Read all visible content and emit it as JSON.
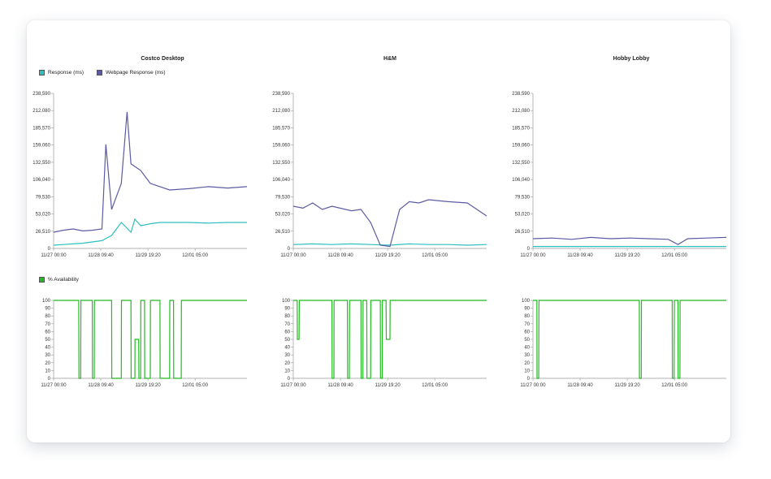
{
  "legend": {
    "response": "Response (ms)",
    "webpage_response": "Webpage Response (ms)",
    "availability": "% Availability"
  },
  "colors": {
    "response": "#2ebfbf",
    "webpage_response": "#5b5ba3",
    "availability": "#22bb22"
  },
  "chart_data": [
    {
      "type": "line",
      "title": "Costco Desktop",
      "x_ticks": [
        "11/27 00:00",
        "11/28 09:40",
        "11/29 19:20",
        "12/01 05:00"
      ],
      "y_ticks": [
        "238,590",
        "212,080",
        "185,570",
        "159,060",
        "132,550",
        "106,040",
        "79,530",
        "53,020",
        "26,510",
        "0"
      ],
      "ylim": [
        0,
        238590
      ],
      "series": [
        {
          "name": "Response (ms)",
          "x": [
            0,
            0.05,
            0.1,
            0.15,
            0.2,
            0.25,
            0.3,
            0.35,
            0.4,
            0.42,
            0.45,
            0.5,
            0.55,
            0.6,
            0.7,
            0.8,
            0.9,
            1.0
          ],
          "y": [
            5000,
            6000,
            7000,
            8000,
            10000,
            12000,
            20000,
            40000,
            25000,
            45000,
            35000,
            38000,
            40000,
            40000,
            40000,
            39000,
            40000,
            40000
          ]
        },
        {
          "name": "Webpage Response (ms)",
          "x": [
            0,
            0.05,
            0.1,
            0.15,
            0.2,
            0.25,
            0.27,
            0.3,
            0.35,
            0.38,
            0.4,
            0.45,
            0.5,
            0.55,
            0.6,
            0.7,
            0.8,
            0.9,
            1.0
          ],
          "y": [
            25000,
            28000,
            30000,
            27000,
            28000,
            30000,
            160000,
            60000,
            100000,
            210000,
            130000,
            120000,
            100000,
            95000,
            90000,
            92000,
            95000,
            93000,
            95000
          ]
        }
      ]
    },
    {
      "type": "line",
      "title": "H&M",
      "x_ticks": [
        "11/27 00:00",
        "11/28 09:40",
        "11/29 19:20",
        "12/01 05:00"
      ],
      "y_ticks": [
        "238,590",
        "212,080",
        "185,570",
        "159,060",
        "132,550",
        "106,040",
        "79,530",
        "53,020",
        "26,510",
        "0"
      ],
      "ylim": [
        0,
        238590
      ],
      "series": [
        {
          "name": "Response (ms)",
          "x": [
            0,
            0.1,
            0.2,
            0.3,
            0.4,
            0.5,
            0.6,
            0.7,
            0.8,
            0.9,
            1.0
          ],
          "y": [
            6000,
            7000,
            6000,
            7000,
            6000,
            5000,
            7000,
            6000,
            6000,
            5000,
            6000
          ]
        },
        {
          "name": "Webpage Response (ms)",
          "x": [
            0,
            0.05,
            0.1,
            0.15,
            0.2,
            0.3,
            0.35,
            0.4,
            0.45,
            0.5,
            0.55,
            0.6,
            0.65,
            0.7,
            0.8,
            0.9,
            1.0
          ],
          "y": [
            65000,
            62000,
            70000,
            60000,
            65000,
            58000,
            60000,
            40000,
            5000,
            3000,
            60000,
            72000,
            70000,
            75000,
            72000,
            70000,
            50000
          ]
        }
      ]
    },
    {
      "type": "line",
      "title": "Hobby Lobby",
      "x_ticks": [
        "11/27 00:00",
        "11/28 09:40",
        "11/29 19:20",
        "12/01 05:00"
      ],
      "y_ticks": [
        "238,590",
        "212,080",
        "185,570",
        "159,060",
        "132,550",
        "106,040",
        "79,530",
        "53,020",
        "26,510",
        "0"
      ],
      "ylim": [
        0,
        238590
      ],
      "series": [
        {
          "name": "Response (ms)",
          "x": [
            0,
            0.1,
            0.2,
            0.3,
            0.4,
            0.5,
            0.6,
            0.7,
            0.8,
            0.9,
            1.0
          ],
          "y": [
            3000,
            3000,
            3000,
            3000,
            3000,
            3000,
            3000,
            3000,
            3000,
            3000,
            3000
          ]
        },
        {
          "name": "Webpage Response (ms)",
          "x": [
            0,
            0.1,
            0.2,
            0.3,
            0.4,
            0.5,
            0.6,
            0.7,
            0.75,
            0.8,
            0.9,
            1.0
          ],
          "y": [
            15000,
            16000,
            14000,
            17000,
            15000,
            16000,
            15000,
            14000,
            6000,
            15000,
            16000,
            17000
          ]
        }
      ]
    },
    {
      "type": "line",
      "title": "",
      "x_ticks": [
        "11/27 00:00",
        "11/28 09:40",
        "11/29 19:20",
        "12/01 05:00"
      ],
      "y_ticks": [
        "100",
        "90",
        "80",
        "70",
        "60",
        "50",
        "40",
        "30",
        "20",
        "10",
        "0"
      ],
      "ylim": [
        0,
        100
      ],
      "series": [
        {
          "name": "% Availability",
          "x": [
            0,
            0.13,
            0.131,
            0.14,
            0.141,
            0.2,
            0.201,
            0.21,
            0.211,
            0.3,
            0.301,
            0.35,
            0.351,
            0.4,
            0.401,
            0.42,
            0.421,
            0.44,
            0.441,
            0.45,
            0.451,
            0.47,
            0.471,
            0.5,
            0.501,
            0.55,
            0.551,
            0.6,
            0.601,
            0.62,
            0.621,
            0.66,
            0.661,
            1.0
          ],
          "y": [
            100,
            100,
            0,
            0,
            100,
            100,
            0,
            0,
            100,
            100,
            0,
            0,
            100,
            100,
            0,
            0,
            50,
            50,
            0,
            0,
            100,
            100,
            0,
            0,
            100,
            100,
            0,
            0,
            100,
            100,
            0,
            0,
            100,
            100
          ]
        }
      ]
    },
    {
      "type": "line",
      "title": "",
      "x_ticks": [
        "11/27 00:00",
        "11/28 09:40",
        "11/29 19:20",
        "12/01 05:00"
      ],
      "y_ticks": [
        "100",
        "90",
        "80",
        "70",
        "60",
        "50",
        "40",
        "30",
        "20",
        "10",
        "0"
      ],
      "ylim": [
        0,
        100
      ],
      "series": [
        {
          "name": "% Availability",
          "x": [
            0,
            0.02,
            0.021,
            0.03,
            0.031,
            0.2,
            0.201,
            0.21,
            0.211,
            0.28,
            0.281,
            0.29,
            0.291,
            0.35,
            0.351,
            0.36,
            0.361,
            0.38,
            0.381,
            0.4,
            0.401,
            0.45,
            0.451,
            0.46,
            0.461,
            0.48,
            0.481,
            0.5,
            0.501,
            1.0
          ],
          "y": [
            100,
            100,
            50,
            50,
            100,
            100,
            0,
            0,
            100,
            100,
            0,
            0,
            100,
            100,
            0,
            0,
            100,
            100,
            0,
            0,
            100,
            100,
            0,
            0,
            100,
            100,
            50,
            50,
            100,
            100
          ]
        }
      ]
    },
    {
      "type": "line",
      "title": "",
      "x_ticks": [
        "11/27 00:00",
        "11/28 09:40",
        "11/29 19:20",
        "12/01 05:00"
      ],
      "y_ticks": [
        "100",
        "90",
        "80",
        "70",
        "60",
        "50",
        "40",
        "30",
        "20",
        "10",
        "0"
      ],
      "ylim": [
        0,
        100
      ],
      "series": [
        {
          "name": "% Availability",
          "x": [
            0,
            0.02,
            0.021,
            0.03,
            0.031,
            0.55,
            0.551,
            0.56,
            0.561,
            0.72,
            0.721,
            0.73,
            0.731,
            0.75,
            0.751,
            0.76,
            0.761,
            1.0
          ],
          "y": [
            100,
            100,
            0,
            0,
            100,
            100,
            0,
            0,
            100,
            100,
            0,
            0,
            100,
            100,
            0,
            0,
            100,
            100
          ]
        }
      ]
    }
  ]
}
